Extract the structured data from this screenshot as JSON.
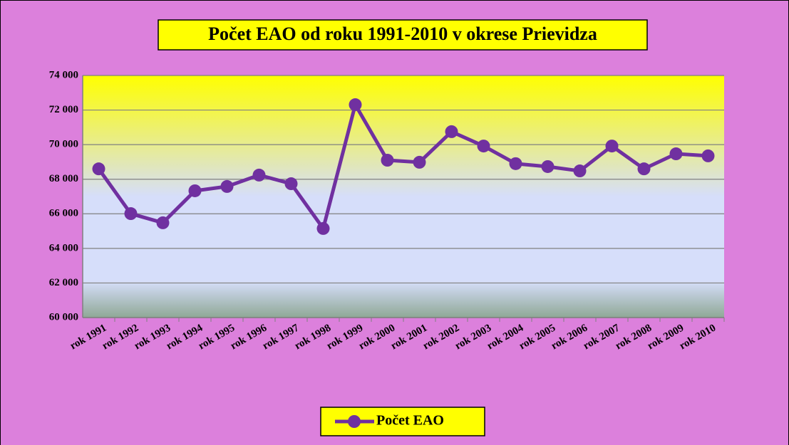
{
  "chart_data": {
    "type": "line",
    "title": "Počet EAO od roku 1991-2010 v okrese Prievidza",
    "categories": [
      "rok 1991",
      "rok 1992",
      "rok 1993",
      "rok 1994",
      "rok 1995",
      "rok 1996",
      "rok 1997",
      "rok 1998",
      "rok 1999",
      "rok 2000",
      "rok 2001",
      "rok 2002",
      "rok 2003",
      "rok 2004",
      "rok 2005",
      "rok 2006",
      "rok 2007",
      "rok 2008",
      "rok 2009",
      "rok 2010"
    ],
    "series": [
      {
        "name": "Počet EAO",
        "color": "#7030a0",
        "values": [
          68600,
          66010,
          65480,
          67330,
          67580,
          68240,
          67740,
          65150,
          72310,
          69100,
          68980,
          70750,
          69920,
          68900,
          68730,
          68480,
          69920,
          68600,
          69470,
          69350
        ]
      }
    ],
    "ylim": [
      60000,
      74000
    ],
    "yticks": [
      {
        "value": 60000,
        "label": "60 000"
      },
      {
        "value": 62000,
        "label": "62 000"
      },
      {
        "value": 64000,
        "label": "64 000"
      },
      {
        "value": 66000,
        "label": "66 000"
      },
      {
        "value": 68000,
        "label": "68 000"
      },
      {
        "value": 70000,
        "label": "70 000"
      },
      {
        "value": 72000,
        "label": "72 000"
      },
      {
        "value": 74000,
        "label": "74 000"
      }
    ],
    "grid": true,
    "legend": "bottom"
  }
}
